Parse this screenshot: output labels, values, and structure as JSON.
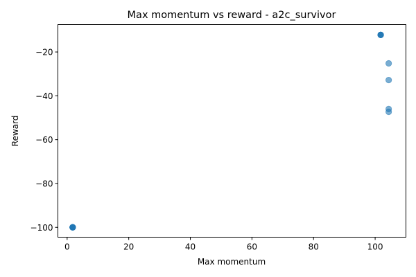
{
  "chart_data": {
    "type": "scatter",
    "title": "Max momentum vs reward - a2c_survivor",
    "xlabel": "Max momentum",
    "ylabel": "Reward",
    "xlim": [
      -3,
      110
    ],
    "ylim": [
      -104.5,
      -7.5
    ],
    "xticks": [
      0,
      20,
      40,
      60,
      80,
      100
    ],
    "yticks": [
      -100,
      -80,
      -60,
      -40,
      -20
    ],
    "xtick_labels": [
      "0",
      "20",
      "40",
      "60",
      "80",
      "100"
    ],
    "ytick_labels": [
      "−100",
      "−80",
      "−60",
      "−40",
      "−20"
    ],
    "grid": false,
    "marker_color": "#1f77b4",
    "marker_alpha": 0.6,
    "points": [
      {
        "x": 1.8,
        "y": -100
      },
      {
        "x": 1.8,
        "y": -100
      },
      {
        "x": 1.8,
        "y": -100
      },
      {
        "x": 1.8,
        "y": -100
      },
      {
        "x": 1.8,
        "y": -100
      },
      {
        "x": 1.8,
        "y": -100
      },
      {
        "x": 1.8,
        "y": -100
      },
      {
        "x": 1.8,
        "y": -100
      },
      {
        "x": 101.8,
        "y": -12.2
      },
      {
        "x": 101.8,
        "y": -12.2
      },
      {
        "x": 101.8,
        "y": -12.2
      },
      {
        "x": 101.8,
        "y": -12.2
      },
      {
        "x": 104.4,
        "y": -25.2
      },
      {
        "x": 104.4,
        "y": -32.8
      },
      {
        "x": 104.4,
        "y": -46
      },
      {
        "x": 104.4,
        "y": -47.3
      }
    ]
  }
}
